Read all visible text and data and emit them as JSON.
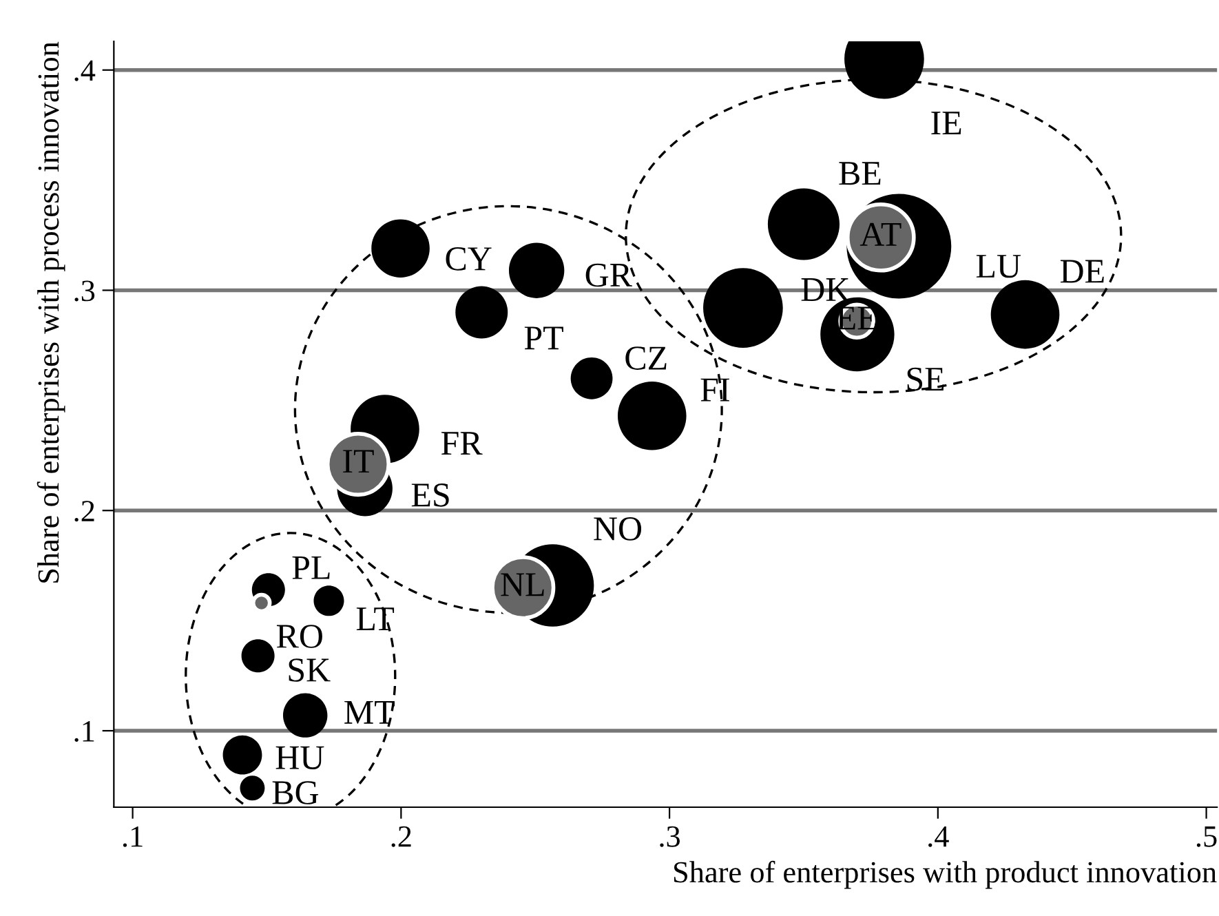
{
  "chart_data": {
    "type": "bubble",
    "xlabel": "Share of enterprises with product innovation",
    "ylabel": "Share of enterprises with process innovation",
    "xlim": [
      0.093,
      0.504
    ],
    "ylim": [
      0.0653,
      0.413
    ],
    "xticks": [
      {
        "value": 0.1,
        "label": ".1"
      },
      {
        "value": 0.2,
        "label": ".2"
      },
      {
        "value": 0.3,
        "label": ".3"
      },
      {
        "value": 0.4,
        "label": ".4"
      },
      {
        "value": 0.5,
        "label": ".5"
      }
    ],
    "yticks": [
      {
        "value": 0.1,
        "label": ".1"
      },
      {
        "value": 0.2,
        "label": ".2"
      },
      {
        "value": 0.3,
        "label": ".3"
      },
      {
        "value": 0.4,
        "label": ".4"
      }
    ],
    "grid": "y",
    "legend": false,
    "marker": "circle",
    "series": [
      {
        "color": "#000000",
        "x": [
          0.38,
          0.35,
          0.3855,
          0.3274,
          0.37,
          0.4325,
          0.1998,
          0.2505,
          0.23,
          0.271,
          0.2935,
          0.194,
          0.1865,
          0.2565,
          0.1506,
          0.1731,
          0.1467,
          0.1643,
          0.1409,
          0.1446
        ],
        "values": [
          0.405,
          0.33,
          0.32,
          0.292,
          0.28,
          0.289,
          0.319,
          0.309,
          0.29,
          0.26,
          0.243,
          0.237,
          0.21,
          0.166,
          0.164,
          0.159,
          0.134,
          0.107,
          0.089,
          0.074
        ],
        "sizes": [
          0.58,
          0.47,
          1,
          0.58,
          0.5,
          0.43,
          0.31,
          0.28,
          0.25,
          0.16,
          0.43,
          0.43,
          0.28,
          0.62,
          0.1,
          0.084,
          0.1,
          0.18,
          0.14,
          0.056
        ]
      },
      {
        "color": "#666666",
        "x": [
          0.3787,
          0.3698,
          0.184,
          0.2454,
          0.148
        ],
        "values": [
          0.324,
          0.286,
          0.221,
          0.165,
          0.158
        ],
        "sizes": [
          0.4,
          0.1,
          0.34,
          0.34,
          0.025
        ]
      }
    ],
    "annotations": [
      {
        "text": "IE",
        "x": 0.38,
        "y": 0.405
      },
      {
        "text": "BE",
        "x": 0.35,
        "y": 0.33
      },
      {
        "text": "LU",
        "x": 0.3855,
        "y": 0.32
      },
      {
        "text": "DK",
        "x": 0.3274,
        "y": 0.292
      },
      {
        "text": "SE",
        "x": 0.37,
        "y": 0.28
      },
      {
        "text": "DE",
        "x": 0.4325,
        "y": 0.289
      },
      {
        "text": "CY",
        "x": 0.1998,
        "y": 0.319
      },
      {
        "text": "GR",
        "x": 0.2505,
        "y": 0.309
      },
      {
        "text": "PT",
        "x": 0.23,
        "y": 0.29
      },
      {
        "text": "CZ",
        "x": 0.271,
        "y": 0.26
      },
      {
        "text": "FI",
        "x": 0.2935,
        "y": 0.243
      },
      {
        "text": "FR",
        "x": 0.194,
        "y": 0.237
      },
      {
        "text": "ES",
        "x": 0.1865,
        "y": 0.21
      },
      {
        "text": "NO",
        "x": 0.2565,
        "y": 0.166
      },
      {
        "text": "PL",
        "x": 0.1506,
        "y": 0.164
      },
      {
        "text": "LT",
        "x": 0.1731,
        "y": 0.159
      },
      {
        "text": "SK",
        "x": 0.1467,
        "y": 0.134
      },
      {
        "text": "MT",
        "x": 0.1643,
        "y": 0.107
      },
      {
        "text": "HU",
        "x": 0.1409,
        "y": 0.089
      },
      {
        "text": "BG",
        "x": 0.1446,
        "y": 0.074
      },
      {
        "text": "AT",
        "x": 0.3787,
        "y": 0.324
      },
      {
        "text": "EE",
        "x": 0.3698,
        "y": 0.286
      },
      {
        "text": "IT",
        "x": 0.184,
        "y": 0.221
      },
      {
        "text": "NL",
        "x": 0.2454,
        "y": 0.165
      },
      {
        "text": "RO",
        "x": 0.148,
        "y": 0.158
      }
    ]
  }
}
